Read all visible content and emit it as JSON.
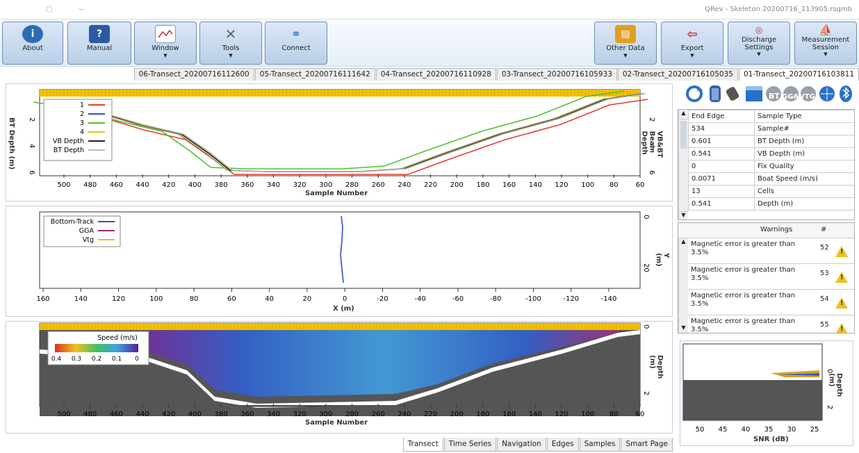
{
  "window": {
    "title": "QRev - Skeleton 20200716_113905.rsqmb"
  },
  "ribbon": {
    "left": [
      {
        "label": "About",
        "icon": "info-icon",
        "color": "#2c6bb5"
      },
      {
        "label": "Manual",
        "icon": "manual-icon",
        "color": "#2c5aa0"
      },
      {
        "label": "Window",
        "icon": "window-chart-icon",
        "color": "#7a98c0"
      },
      {
        "label": "Tools",
        "icon": "tools-icon",
        "color": "#888"
      },
      {
        "label": "Connect",
        "icon": "connect-icon",
        "color": "#3a7ac0"
      }
    ],
    "right": [
      {
        "label": "Other Data",
        "icon": "other-data-icon",
        "color": "#e0a020"
      },
      {
        "label": "Export",
        "icon": "export-icon",
        "color": "#c03030"
      },
      {
        "label": "Discharge Settings",
        "icon": "discharge-settings-icon",
        "color": "#8888aa"
      },
      {
        "label": "Measurement Session",
        "icon": "measurement-session-icon",
        "color": "#c8a040"
      }
    ]
  },
  "transect_tabs": [
    "01-Transect_20200716103811",
    "02-Transect_20200716105035",
    "03-Transect_20200716105933",
    "04-Transect_20200716110928",
    "05-Transect_20200716111642",
    "06-Transect_20200716112600"
  ],
  "status_icons": [
    "bluetooth-icon",
    "gga-globe-icon",
    "vtg-globe-icon",
    "bt-globe-icon",
    "depth-icon",
    "ping-icon",
    "battery-icon",
    "refresh-icon"
  ],
  "status_labels": {
    "bt": "BT",
    "gga": "GGA",
    "vtg": "VTG"
  },
  "properties": [
    {
      "name": "Sample Type",
      "value": "End Edge"
    },
    {
      "name": "Sample#",
      "value": "534"
    },
    {
      "name": "BT Depth (m)",
      "value": "0.601"
    },
    {
      "name": "VB Depth (m)",
      "value": "0.541"
    },
    {
      "name": "Fix Quality",
      "value": "0"
    },
    {
      "name": "Boat Speed (m/s)",
      "value": "0.0071"
    },
    {
      "name": "Cells",
      "value": "13"
    },
    {
      "name": "Depth (m)",
      "value": "0.541"
    }
  ],
  "warnings": {
    "header_num": "#",
    "header_text": "Warnings",
    "items": [
      {
        "num": "52",
        "text": "Magnetic error is greater than 3.5%"
      },
      {
        "num": "53",
        "text": "Magnetic error is greater than 3.5%"
      },
      {
        "num": "54",
        "text": "Magnetic error is greater than 3.5%"
      },
      {
        "num": "55",
        "text": "Magnetic error is greater than 3.5%"
      }
    ]
  },
  "depth_chart": {
    "xlabel": "Sample Number",
    "ylabel_left": "BT Depth (m)",
    "ylabel_right": "VB&BT Beam Depth",
    "xticks": [
      "500",
      "480",
      "460",
      "440",
      "420",
      "400",
      "380",
      "360",
      "340",
      "320",
      "300",
      "280",
      "260",
      "240",
      "220",
      "200",
      "180",
      "160",
      "140",
      "120",
      "100",
      "80",
      "60"
    ],
    "yticks": [
      "2",
      "4",
      "6"
    ],
    "yticks_right": [
      "2",
      "4",
      "6"
    ],
    "legend": [
      {
        "name": "1",
        "color": "#e04030"
      },
      {
        "name": "2",
        "color": "#3050c0"
      },
      {
        "name": "3",
        "color": "#50c030"
      },
      {
        "name": "4",
        "color": "#e0c020"
      },
      {
        "name": "VB Depth",
        "color": "#222222"
      },
      {
        "name": "BT Depth",
        "color": "#bbbbbb"
      }
    ]
  },
  "track_chart": {
    "xlabel": "X (m)",
    "ylabel": "Y (m)",
    "xticks": [
      "160",
      "140",
      "120",
      "100",
      "80",
      "60",
      "40",
      "20",
      "0",
      "-20",
      "-40",
      "-60",
      "-80",
      "-100",
      "-120",
      "-140"
    ],
    "yticks": [
      "0",
      "20"
    ],
    "legend": [
      {
        "name": "Bottom-Track",
        "color": "#3050c0"
      },
      {
        "name": "GGA",
        "color": "#a02080"
      },
      {
        "name": "Vtg",
        "color": "#e0c020"
      }
    ]
  },
  "contour_chart": {
    "xlabel": "Sample Number",
    "ylabel": "Depth (m)",
    "colorbar_title": "Speed (m/s)",
    "colorbar_ticks": [
      "0.4",
      "0.3",
      "0.2",
      "0.1",
      "0"
    ],
    "xticks": [
      "500",
      "480",
      "460",
      "440",
      "420",
      "400",
      "380",
      "360",
      "340",
      "320",
      "300",
      "280",
      "260",
      "240",
      "220",
      "200",
      "180",
      "160",
      "140",
      "120",
      "100",
      "80",
      "60"
    ],
    "yticks": [
      "0",
      "2"
    ]
  },
  "snr_chart": {
    "xlabel": "SNR (dB)",
    "ylabel": "Depth (m)",
    "xticks": [
      "50",
      "45",
      "40",
      "35",
      "30",
      "25"
    ],
    "yticks": [
      "0",
      "2"
    ]
  },
  "bottom_tabs": [
    {
      "label": "Smart Page",
      "active": false
    },
    {
      "label": "Samples",
      "active": false
    },
    {
      "label": "Edges",
      "active": false
    },
    {
      "label": "Navigation",
      "active": false
    },
    {
      "label": "Time Series",
      "active": false
    },
    {
      "label": "Transect",
      "active": true
    }
  ]
}
